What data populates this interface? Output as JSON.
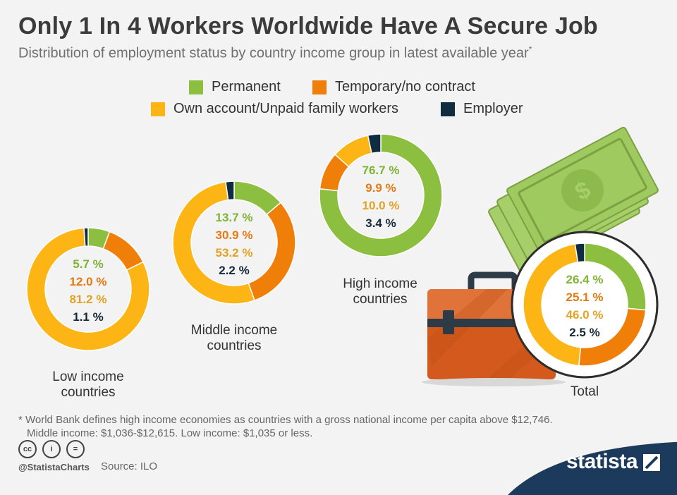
{
  "header": {
    "title": "Only 1 In 4 Workers Worldwide Have A Secure Job",
    "subtitle": "Distribution of employment status by country income group in latest available year",
    "subtitle_mark": "*"
  },
  "legend": [
    {
      "label": "Permanent",
      "color": "#8cbf3f"
    },
    {
      "label": "Temporary/no contract",
      "color": "#f07f09"
    },
    {
      "label": "Own account/Unpaid family workers",
      "color": "#fdb515"
    },
    {
      "label": "Employer",
      "color": "#0f2c40"
    }
  ],
  "chart_data": {
    "type": "pie",
    "series_names": [
      "Permanent",
      "Temporary/no contract",
      "Own account/Unpaid family workers",
      "Employer"
    ],
    "colors": [
      "#8cbf3f",
      "#f07f09",
      "#fdb515",
      "#0f2c40"
    ],
    "label_colors": [
      "#7fb336",
      "#e37a13",
      "#e3a222",
      "#15293a"
    ],
    "groups": [
      {
        "name": "Low income countries",
        "values": [
          5.7,
          12.0,
          81.2,
          1.1
        ],
        "labels": [
          "5.7 %",
          "12.0 %",
          "81.2 %",
          "1.1 %"
        ]
      },
      {
        "name": "Middle income countries",
        "values": [
          13.7,
          30.9,
          53.2,
          2.2
        ],
        "labels": [
          "13.7 %",
          "30.9 %",
          "53.2 %",
          "2.2 %"
        ]
      },
      {
        "name": "High income countries",
        "values": [
          76.7,
          9.9,
          10.0,
          3.4
        ],
        "labels": [
          "76.7 %",
          "9.9 %",
          "10.0 %",
          "3.4 %"
        ]
      },
      {
        "name": "Total",
        "values": [
          26.4,
          25.1,
          46.0,
          2.5
        ],
        "labels": [
          "26.4 %",
          "25.1 %",
          "46.0 %",
          "2.5 %"
        ]
      }
    ]
  },
  "group_labels": {
    "low": [
      "Low income",
      "countries"
    ],
    "middle": [
      "Middle income",
      "countries"
    ],
    "high": [
      "High income",
      "countries"
    ],
    "total": "Total"
  },
  "footnote": {
    "line1": "* World Bank defines high income economies as countries with a gross national income per capita above $12,746.",
    "line2": "Middle income: $1,036-$12,615. Low income: $1,035 or less."
  },
  "footer": {
    "cc_icons": [
      "cc",
      "i",
      "="
    ],
    "handle": "@StatistaCharts",
    "source": "Source: ILO",
    "brand": "statista"
  },
  "colors": {
    "background": "#f3f3f3",
    "brand_navy": "#1c3a5c"
  }
}
